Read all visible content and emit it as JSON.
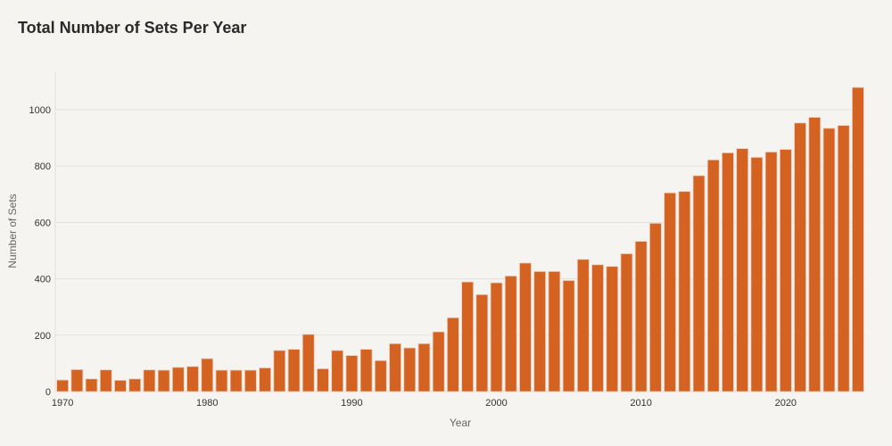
{
  "chart_data": {
    "type": "bar",
    "title": "Total Number of Sets Per Year",
    "xlabel": "Year",
    "ylabel": "Number of Sets",
    "x": [
      1970,
      1971,
      1972,
      1973,
      1974,
      1975,
      1976,
      1977,
      1978,
      1979,
      1980,
      1981,
      1982,
      1983,
      1984,
      1985,
      1986,
      1987,
      1988,
      1989,
      1990,
      1991,
      1992,
      1993,
      1994,
      1995,
      1996,
      1997,
      1998,
      1999,
      2000,
      2001,
      2002,
      2003,
      2004,
      2005,
      2006,
      2007,
      2008,
      2009,
      2010,
      2011,
      2012,
      2013,
      2014,
      2015,
      2016,
      2017,
      2018,
      2019,
      2020,
      2021,
      2022,
      2023,
      2024,
      2025
    ],
    "values": [
      41,
      78,
      45,
      77,
      40,
      45,
      77,
      76,
      86,
      89,
      117,
      76,
      76,
      76,
      84,
      146,
      150,
      203,
      81,
      146,
      128,
      150,
      110,
      170,
      155,
      170,
      212,
      262,
      389,
      344,
      386,
      410,
      456,
      426,
      426,
      394,
      469,
      450,
      444,
      489,
      533,
      597,
      705,
      710,
      766,
      822,
      847,
      862,
      831,
      850,
      859,
      953,
      973,
      934,
      944,
      1079
    ],
    "xticks": [
      "1970",
      "1980",
      "1990",
      "2000",
      "2010",
      "2020"
    ],
    "yticks": [
      "0",
      "200",
      "400",
      "600",
      "800",
      "1000"
    ],
    "xlim": [
      1969.5,
      2025.5
    ],
    "ylim": [
      0,
      1136
    ],
    "grid": true,
    "bar_color": "#d46322"
  }
}
